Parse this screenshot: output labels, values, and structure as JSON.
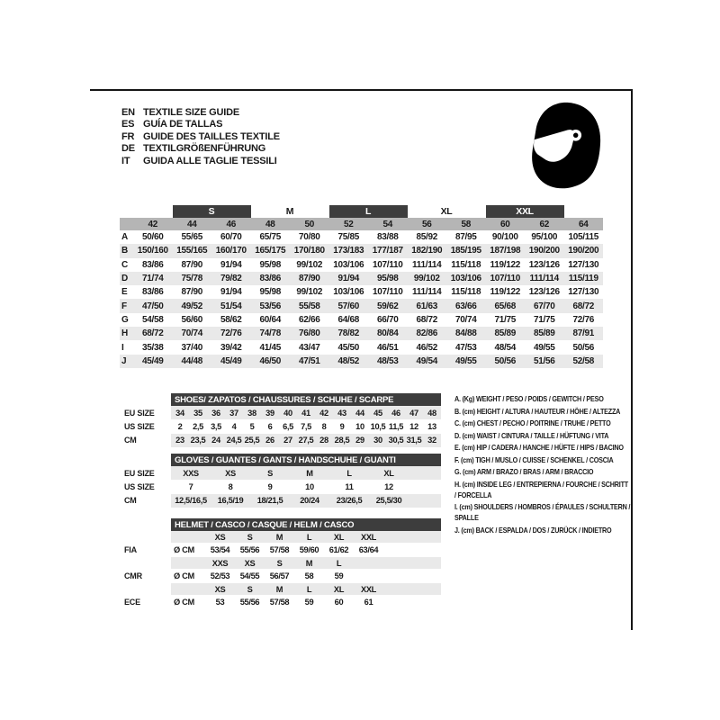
{
  "header": {
    "languages": [
      {
        "code": "EN",
        "label": "TEXTILE SIZE GUIDE"
      },
      {
        "code": "ES",
        "label": "GUÍA DE TALLAS"
      },
      {
        "code": "FR",
        "label": "GUIDE DES TAILLES TEXTILE"
      },
      {
        "code": "DE",
        "label": "TEXTILGRÖßENFÜHRUNG"
      },
      {
        "code": "IT",
        "label": "GUIDA ALLE TAGLIE TESSILI"
      }
    ],
    "icon": "full-face-racing-helmet"
  },
  "textile_table": {
    "size_groups": [
      {
        "label": "S",
        "highlighted": true
      },
      {
        "label": "M",
        "highlighted": false
      },
      {
        "label": "L",
        "highlighted": true
      },
      {
        "label": "XL",
        "highlighted": false
      },
      {
        "label": "XXL",
        "highlighted": true
      }
    ],
    "eu_sizes": [
      "42",
      "44",
      "46",
      "48",
      "50",
      "52",
      "54",
      "56",
      "58",
      "60",
      "62",
      "64"
    ],
    "rows": [
      {
        "label": "A",
        "values": [
          "50/60",
          "55/65",
          "60/70",
          "65/75",
          "70/80",
          "75/85",
          "83/88",
          "85/92",
          "87/95",
          "90/100",
          "95/100",
          "105/115"
        ]
      },
      {
        "label": "B",
        "values": [
          "150/160",
          "155/165",
          "160/170",
          "165/175",
          "170/180",
          "173/183",
          "177/187",
          "182/190",
          "185/195",
          "187/198",
          "190/200",
          "190/200"
        ]
      },
      {
        "label": "C",
        "values": [
          "83/86",
          "87/90",
          "91/94",
          "95/98",
          "99/102",
          "103/106",
          "107/110",
          "111/114",
          "115/118",
          "119/122",
          "123/126",
          "127/130"
        ]
      },
      {
        "label": "D",
        "values": [
          "71/74",
          "75/78",
          "79/82",
          "83/86",
          "87/90",
          "91/94",
          "95/98",
          "99/102",
          "103/106",
          "107/110",
          "111/114",
          "115/119"
        ]
      },
      {
        "label": "E",
        "values": [
          "83/86",
          "87/90",
          "91/94",
          "95/98",
          "99/102",
          "103/106",
          "107/110",
          "111/114",
          "115/118",
          "119/122",
          "123/126",
          "127/130"
        ]
      },
      {
        "label": "F",
        "values": [
          "47/50",
          "49/52",
          "51/54",
          "53/56",
          "55/58",
          "57/60",
          "59/62",
          "61/63",
          "63/66",
          "65/68",
          "67/70",
          "68/72"
        ]
      },
      {
        "label": "G",
        "values": [
          "54/58",
          "56/60",
          "58/62",
          "60/64",
          "62/66",
          "64/68",
          "66/70",
          "68/72",
          "70/74",
          "71/75",
          "71/75",
          "72/76"
        ]
      },
      {
        "label": "H",
        "values": [
          "68/72",
          "70/74",
          "72/76",
          "74/78",
          "76/80",
          "78/82",
          "80/84",
          "82/86",
          "84/88",
          "85/89",
          "85/89",
          "87/91"
        ]
      },
      {
        "label": "I",
        "values": [
          "35/38",
          "37/40",
          "39/42",
          "41/45",
          "43/47",
          "45/50",
          "46/51",
          "46/52",
          "47/53",
          "48/54",
          "49/55",
          "50/56"
        ]
      },
      {
        "label": "J",
        "values": [
          "45/49",
          "44/48",
          "45/49",
          "46/50",
          "47/51",
          "48/52",
          "48/53",
          "49/54",
          "49/55",
          "50/56",
          "51/56",
          "52/58"
        ]
      }
    ]
  },
  "shoes_table": {
    "title": "SHOES/ ZAPATOS / CHAUSSURES / SCHUHE / SCARPE",
    "rows": [
      {
        "label": "EU SIZE",
        "shaded": true,
        "values": [
          "34",
          "35",
          "36",
          "37",
          "38",
          "39",
          "40",
          "41",
          "42",
          "43",
          "44",
          "45",
          "46",
          "47",
          "48"
        ]
      },
      {
        "label": "US SIZE",
        "shaded": false,
        "values": [
          "2",
          "2,5",
          "3,5",
          "4",
          "5",
          "6",
          "6,5",
          "7,5",
          "8",
          "9",
          "10",
          "10,5",
          "11,5",
          "12",
          "13"
        ]
      },
      {
        "label": "CM",
        "shaded": true,
        "values": [
          "23",
          "23,5",
          "24",
          "24,5",
          "25,5",
          "26",
          "27",
          "27,5",
          "28",
          "28,5",
          "29",
          "30",
          "30,5",
          "31,5",
          "32"
        ]
      }
    ]
  },
  "gloves_table": {
    "title": "GLOVES / GUANTES / GANTS / HANDSCHUHE / GUANTI",
    "rows": [
      {
        "label": "EU SIZE",
        "shaded": true,
        "values": [
          "XXS",
          "XS",
          "S",
          "M",
          "L",
          "XL"
        ]
      },
      {
        "label": "US SIZE",
        "shaded": false,
        "values": [
          "7",
          "8",
          "9",
          "10",
          "11",
          "12"
        ]
      },
      {
        "label": "CM",
        "shaded": true,
        "values": [
          "12,5/16,5",
          "16,5/19",
          "18/21,5",
          "20/24",
          "23/26,5",
          "25,5/30"
        ]
      }
    ]
  },
  "helmet_table": {
    "title": "HELMET / CASCO / CASQUE / HELM / CASCO",
    "unit_label": "Ø CM",
    "sections": [
      {
        "label": "FIA",
        "sizes": [
          "XS",
          "S",
          "M",
          "L",
          "XL",
          "XXL"
        ],
        "values": [
          "53/54",
          "55/56",
          "57/58",
          "59/60",
          "61/62",
          "63/64"
        ]
      },
      {
        "label": "CMR",
        "sizes": [
          "XXS",
          "XS",
          "S",
          "M",
          "L",
          ""
        ],
        "values": [
          "52/53",
          "54/55",
          "56/57",
          "58",
          "59",
          ""
        ]
      },
      {
        "label": "ECE",
        "sizes": [
          "XS",
          "S",
          "M",
          "L",
          "XL",
          "XXL"
        ],
        "values": [
          "53",
          "55/56",
          "57/58",
          "59",
          "60",
          "61"
        ]
      }
    ]
  },
  "legend": {
    "items": [
      "A. (Kg) WEIGHT / PESO / POIDS / GEWITCH / PESO",
      "B. (cm) HEIGHT / ALTURA / HAUTEUR / HÖHE / ALTEZZA",
      "C. (cm) CHEST / PECHO / POITRINE / TRUHE / PETTO",
      "D. (cm) WAIST / CINTURA / TAILLE / HÜFTUNG / VITA",
      "E. (cm) HIP / CADERA / HANCHE / HÜFTE / HIPS /  BACINO",
      "F. (cm) TIGH / MUSLO / CUISSE / SCHENKEL / COSCIA",
      "G. (cm) ARM  / BRAZO / BRAS / ARM / BRACCIO",
      "H. (cm) INSIDE LEG / ENTREPIERNA / FOURCHE / SCHRITT / FORCELLA",
      "I. (cm) SHOULDERS / HOMBROS / ÉPAULES / SCHULTERN / SPALLE",
      "J. (cm) BACK / ESPALDA / DOS / ZURÜCK / INDIETRO"
    ]
  },
  "colors": {
    "dark_bar": "#3d3d3d",
    "size_band": "#b5b5b5",
    "shaded_row": "#e9e9e9",
    "text": "#1a1a1a"
  }
}
